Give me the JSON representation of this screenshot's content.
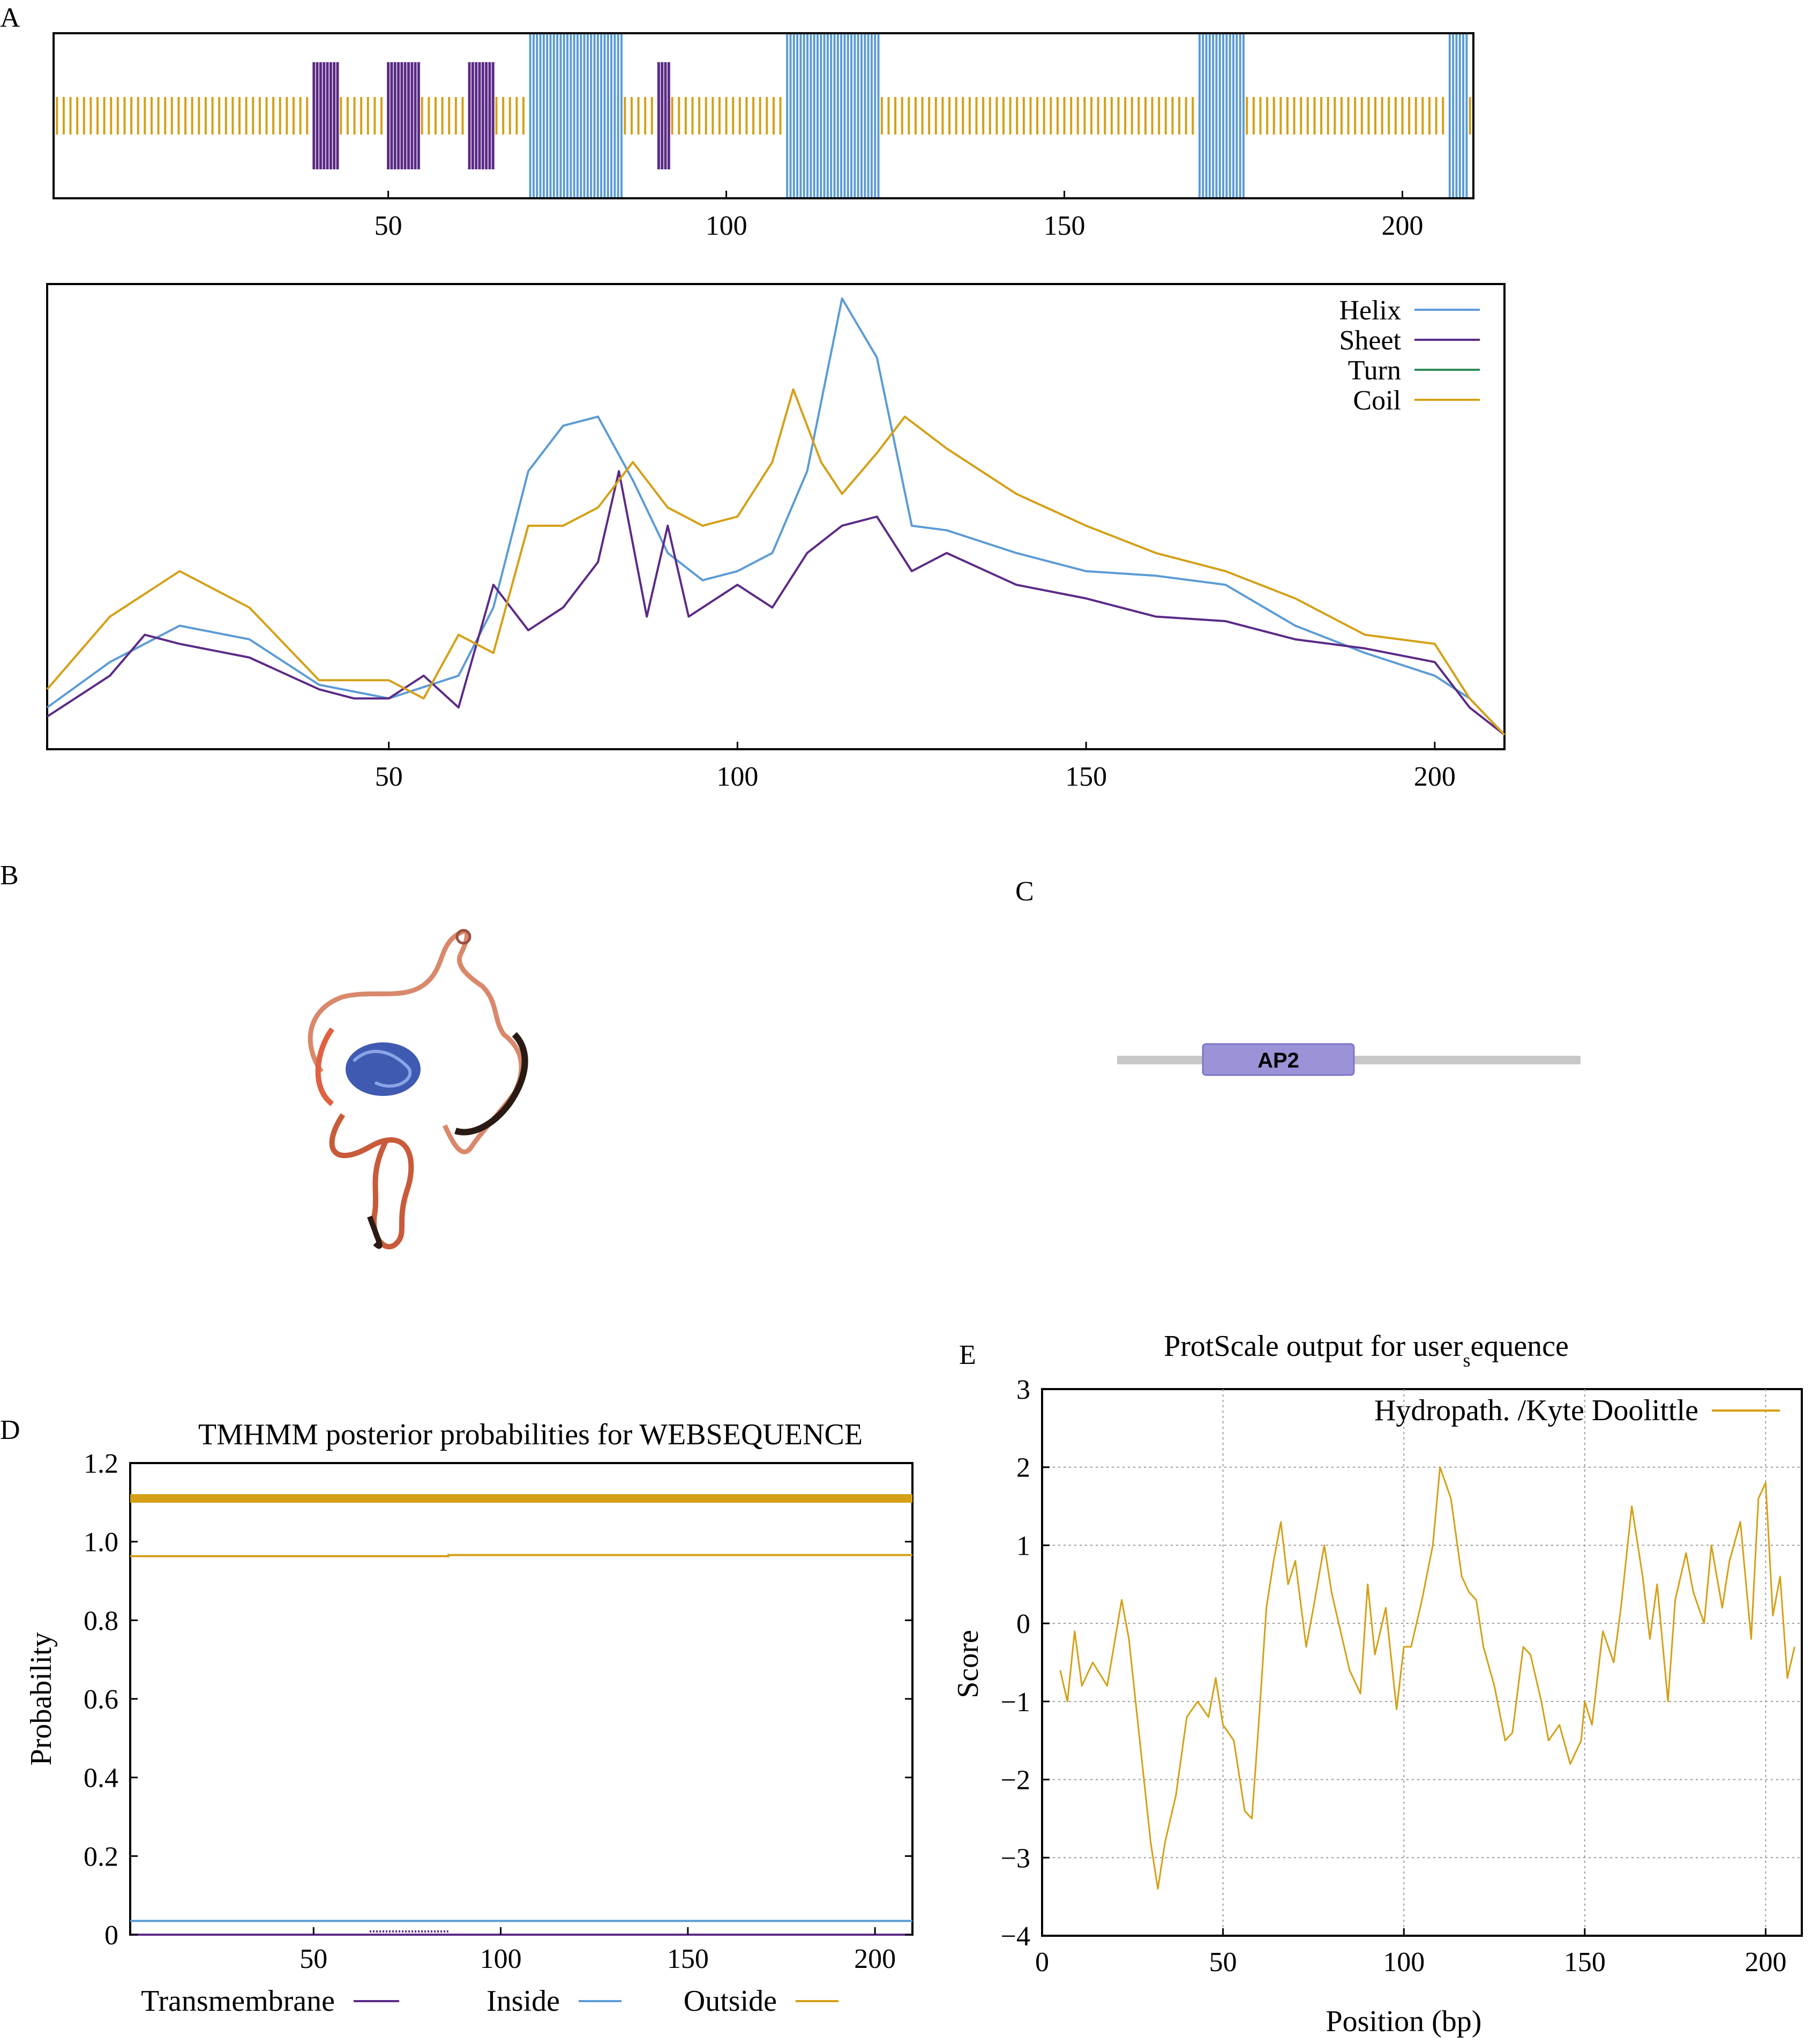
{
  "panels": {
    "A": "A",
    "B": "B",
    "C": "C",
    "D": "D",
    "E": "E"
  },
  "colors": {
    "helix": "#5b9bd5",
    "sheet": "#5b2a86",
    "turn": "#2e8b57",
    "coil": "#d4a017",
    "transmembrane": "#5b2a86",
    "inside": "#5b9bd5",
    "outside": "#d4a017",
    "domain_fill": "#9a93d8",
    "backbone": "#c8c8c8"
  },
  "chart_data": [
    {
      "id": "A-top",
      "type": "heatmap",
      "description_source": "secondary structure track",
      "x_range": [
        1,
        210
      ],
      "xticks": [
        "50",
        "100",
        "150",
        "200"
      ],
      "segments": [
        {
          "class": "coil",
          "start": 1,
          "end": 38
        },
        {
          "class": "sheet",
          "start": 39,
          "end": 42
        },
        {
          "class": "coil",
          "start": 43,
          "end": 49
        },
        {
          "class": "sheet",
          "start": 50,
          "end": 54
        },
        {
          "class": "coil",
          "start": 55,
          "end": 61
        },
        {
          "class": "sheet",
          "start": 62,
          "end": 65
        },
        {
          "class": "coil",
          "start": 66,
          "end": 70
        },
        {
          "class": "helix",
          "start": 71,
          "end": 84
        },
        {
          "class": "coil",
          "start": 85,
          "end": 89
        },
        {
          "class": "sheet",
          "start": 90,
          "end": 91
        },
        {
          "class": "coil",
          "start": 92,
          "end": 108
        },
        {
          "class": "helix",
          "start": 109,
          "end": 122
        },
        {
          "class": "coil",
          "start": 123,
          "end": 169
        },
        {
          "class": "helix",
          "start": 170,
          "end": 176
        },
        {
          "class": "coil",
          "start": 177,
          "end": 206
        },
        {
          "class": "helix",
          "start": 207,
          "end": 209
        },
        {
          "class": "coil",
          "start": 210,
          "end": 210
        }
      ]
    },
    {
      "id": "A-bottom",
      "type": "line",
      "x_range": [
        1,
        210
      ],
      "y_range": [
        0,
        1
      ],
      "xticks": [
        "50",
        "100",
        "150",
        "200"
      ],
      "legend": [
        "Helix",
        "Sheet",
        "Turn",
        "Coil"
      ],
      "legend_position": "top-right",
      "series": [
        {
          "name": "Helix",
          "color_key": "helix",
          "x": [
            1,
            10,
            20,
            30,
            40,
            50,
            60,
            65,
            70,
            75,
            80,
            85,
            90,
            95,
            100,
            105,
            110,
            115,
            120,
            125,
            130,
            140,
            150,
            160,
            170,
            180,
            190,
            200,
            205,
            210
          ],
          "y": [
            0.08,
            0.18,
            0.26,
            0.23,
            0.13,
            0.1,
            0.15,
            0.3,
            0.6,
            0.7,
            0.72,
            0.58,
            0.42,
            0.36,
            0.38,
            0.42,
            0.6,
            0.98,
            0.85,
            0.48,
            0.47,
            0.42,
            0.38,
            0.37,
            0.35,
            0.26,
            0.2,
            0.15,
            0.1,
            0.02
          ]
        },
        {
          "name": "Sheet",
          "color_key": "sheet",
          "x": [
            1,
            10,
            15,
            20,
            30,
            40,
            45,
            50,
            55,
            60,
            65,
            70,
            75,
            80,
            83,
            87,
            90,
            93,
            100,
            105,
            110,
            115,
            120,
            125,
            130,
            140,
            150,
            160,
            170,
            180,
            190,
            200,
            205,
            210
          ],
          "y": [
            0.06,
            0.15,
            0.24,
            0.22,
            0.19,
            0.12,
            0.1,
            0.1,
            0.15,
            0.08,
            0.35,
            0.25,
            0.3,
            0.4,
            0.6,
            0.28,
            0.48,
            0.28,
            0.35,
            0.3,
            0.42,
            0.48,
            0.5,
            0.38,
            0.42,
            0.35,
            0.32,
            0.28,
            0.27,
            0.23,
            0.21,
            0.18,
            0.08,
            0.02
          ]
        },
        {
          "name": "Turn",
          "color_key": "turn",
          "x": [
            1,
            210
          ],
          "y": [
            0,
            0
          ]
        },
        {
          "name": "Coil",
          "color_key": "coil",
          "x": [
            1,
            10,
            20,
            30,
            40,
            50,
            55,
            60,
            65,
            70,
            75,
            80,
            85,
            90,
            95,
            100,
            105,
            108,
            112,
            115,
            120,
            124,
            130,
            140,
            150,
            160,
            170,
            180,
            190,
            200,
            205,
            210
          ],
          "y": [
            0.12,
            0.28,
            0.38,
            0.3,
            0.14,
            0.14,
            0.1,
            0.24,
            0.2,
            0.48,
            0.48,
            0.52,
            0.62,
            0.52,
            0.48,
            0.5,
            0.62,
            0.78,
            0.62,
            0.55,
            0.64,
            0.72,
            0.65,
            0.55,
            0.48,
            0.42,
            0.38,
            0.32,
            0.24,
            0.22,
            0.1,
            0.02
          ]
        }
      ]
    },
    {
      "id": "D",
      "type": "line",
      "title": "TMHMM posterior probabilities for WEBSEQUENCE",
      "ylabel": "Probability",
      "x_range": [
        1,
        210
      ],
      "y_range": [
        0,
        1.2
      ],
      "xticks": [
        "50",
        "100",
        "150",
        "200"
      ],
      "yticks": [
        "0",
        "0.2",
        "0.4",
        "0.6",
        "0.8",
        "1.0",
        "1.2"
      ],
      "legend": [
        "Transmembrane",
        "Inside",
        "Outside"
      ],
      "legend_position": "bottom",
      "series": [
        {
          "name": "Outside",
          "color_key": "outside",
          "x": [
            1,
            86,
            86,
            210
          ],
          "y": [
            0.963,
            0.963,
            0.966,
            0.966
          ]
        },
        {
          "name": "Outside (bar)",
          "color_key": "outside",
          "x": [
            1,
            210
          ],
          "y": [
            1.11,
            1.11
          ]
        },
        {
          "name": "Inside",
          "color_key": "inside",
          "x": [
            1,
            210
          ],
          "y": [
            0.035,
            0.035
          ]
        },
        {
          "name": "Transmembrane",
          "color_key": "transmembrane",
          "x": [
            1,
            210
          ],
          "y": [
            0.0,
            0.0
          ]
        }
      ]
    },
    {
      "id": "E",
      "type": "line",
      "title": "ProtScale output for user",
      "title_subscript": "s",
      "title_suffix": "equence",
      "xlabel": "Position (bp)",
      "ylabel": "Score",
      "x_range": [
        0,
        210
      ],
      "y_range": [
        -4,
        3
      ],
      "xticks": [
        "0",
        "50",
        "100",
        "150",
        "200"
      ],
      "yticks": [
        "3",
        "2",
        "1",
        "0",
        "−1",
        "−2",
        "−3",
        "−4"
      ],
      "grid": true,
      "legend": [
        "Hydropath. /Kyte Doolittle"
      ],
      "legend_position": "top-right",
      "series": [
        {
          "name": "Hydropath. /Kyte Doolittle",
          "color_key": "outside",
          "x": [
            5,
            7,
            9,
            11,
            14,
            18,
            22,
            24,
            27,
            30,
            32,
            34,
            37,
            40,
            43,
            46,
            48,
            50,
            53,
            56,
            58,
            60,
            62,
            64,
            66,
            68,
            70,
            73,
            75,
            78,
            80,
            82,
            85,
            88,
            90,
            92,
            95,
            98,
            100,
            102,
            105,
            108,
            110,
            113,
            116,
            118,
            120,
            122,
            125,
            128,
            130,
            133,
            135,
            138,
            140,
            143,
            146,
            149,
            150,
            152,
            155,
            158,
            160,
            163,
            166,
            168,
            170,
            173,
            175,
            178,
            180,
            183,
            185,
            188,
            190,
            193,
            196,
            198,
            200,
            202,
            204,
            206,
            208
          ],
          "y": [
            -0.6,
            -1.0,
            -0.1,
            -0.8,
            -0.5,
            -0.8,
            0.3,
            -0.2,
            -1.5,
            -2.8,
            -3.4,
            -2.8,
            -2.2,
            -1.2,
            -1.0,
            -1.2,
            -0.7,
            -1.3,
            -1.5,
            -2.4,
            -2.5,
            -1.2,
            0.2,
            0.8,
            1.3,
            0.5,
            0.8,
            -0.3,
            0.2,
            1.0,
            0.4,
            0.0,
            -0.6,
            -0.9,
            0.5,
            -0.4,
            0.2,
            -1.1,
            -0.3,
            -0.3,
            0.3,
            1.0,
            2.0,
            1.6,
            0.6,
            0.4,
            0.3,
            -0.3,
            -0.8,
            -1.5,
            -1.4,
            -0.3,
            -0.4,
            -1.0,
            -1.5,
            -1.3,
            -1.8,
            -1.5,
            -1.0,
            -1.3,
            -0.1,
            -0.5,
            0.2,
            1.5,
            0.6,
            -0.2,
            0.5,
            -1.0,
            0.3,
            0.9,
            0.4,
            0.0,
            1.0,
            0.2,
            0.8,
            1.3,
            -0.2,
            1.6,
            1.8,
            0.1,
            0.6,
            -0.7,
            -0.3
          ]
        }
      ]
    }
  ],
  "panelC": {
    "domain_label": "AP2"
  }
}
